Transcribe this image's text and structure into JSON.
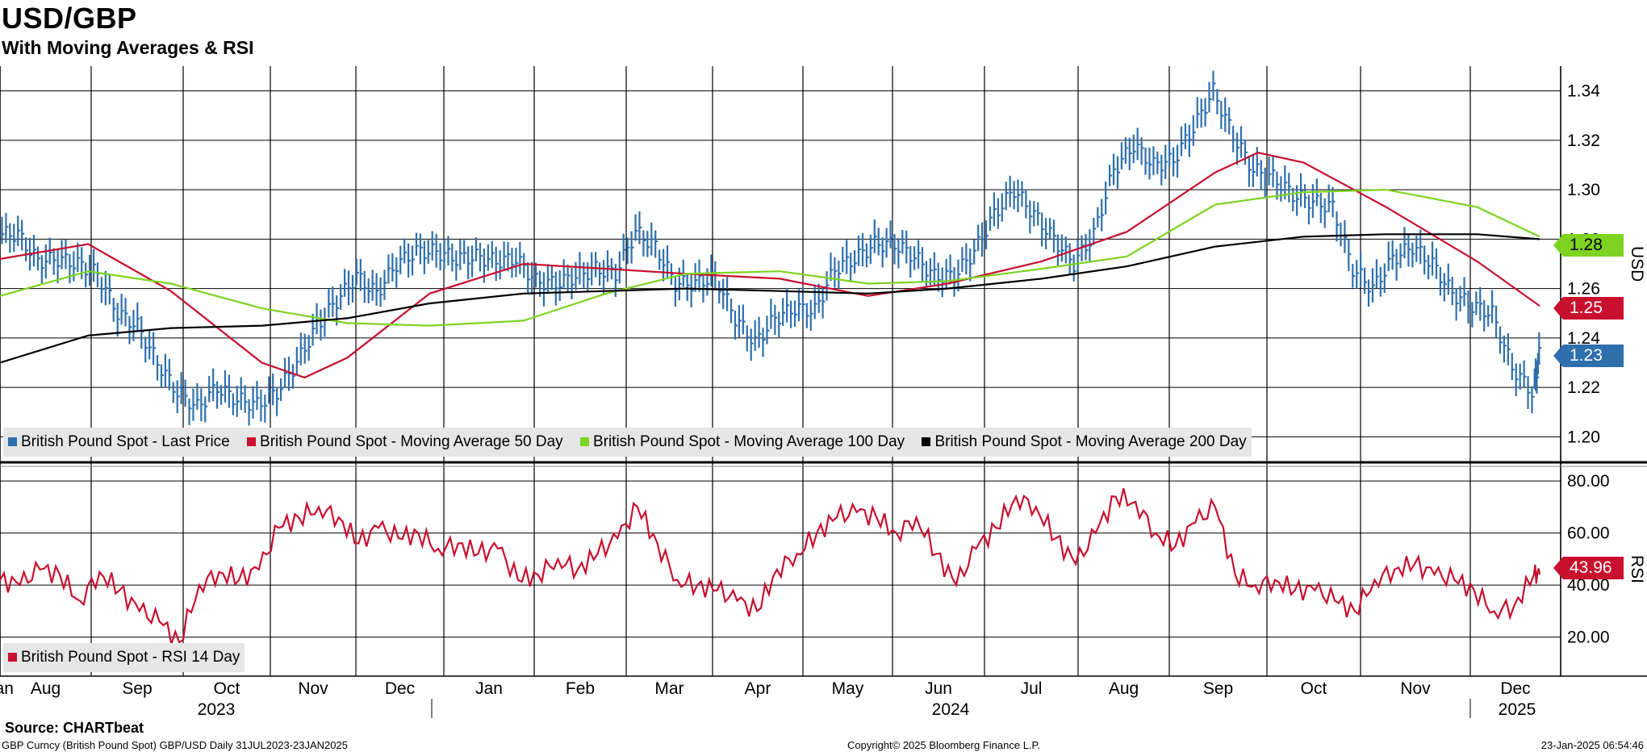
{
  "title": "USD/GBP",
  "subtitle": "With Moving Averages & RSI",
  "source": "Source: CHARTbeat",
  "footer": {
    "left": "GBP Curncy (British Pound Spot) GBP/USD  Daily 31JUL2023-23JAN2025",
    "center": "Copyright© 2025 Bloomberg Finance L.P.",
    "right": "23-Jan-2025 06:54:46"
  },
  "colors": {
    "last_price": "#2e6fad",
    "ma50": "#c8102e",
    "ma100": "#7ed321",
    "ma200": "#000000",
    "rsi": "#c8102e",
    "grid": "#000000",
    "legend_bg": "#e6e6e6"
  },
  "legend_main": [
    {
      "label": "British Pound Spot - Last Price",
      "color": "#2e6fad"
    },
    {
      "label": "British Pound Spot - Moving Average 50 Day",
      "color": "#c8102e"
    },
    {
      "label": "British Pound Spot - Moving Average 100 Day",
      "color": "#7ed321"
    },
    {
      "label": "British Pound Spot - Moving Average 200 Day",
      "color": "#000000"
    }
  ],
  "legend_rsi": [
    {
      "label": "British Pound Spot - RSI 14 Day",
      "color": "#c8102e"
    }
  ],
  "value_tags": {
    "ma100": "1.28",
    "ma50": "1.25",
    "last": "1.23",
    "rsi": "43.96"
  },
  "axis_titles": {
    "price": "USD",
    "rsi": "RSI"
  },
  "chart_data": [
    {
      "type": "line",
      "panel": "price",
      "ylim": [
        1.19,
        1.35
      ],
      "yticks": [
        "1.20",
        "1.22",
        "1.24",
        "1.26",
        "1.28",
        "1.30",
        "1.32",
        "1.34"
      ],
      "ytick_values": [
        1.2,
        1.22,
        1.24,
        1.26,
        1.28,
        1.3,
        1.32,
        1.34
      ],
      "x_months": [
        "Aug",
        "Sep",
        "Oct",
        "Nov",
        "Dec",
        "Jan",
        "Feb",
        "Mar",
        "Apr",
        "May",
        "Jun",
        "Jul",
        "Aug",
        "Sep",
        "Oct",
        "Nov",
        "Dec",
        "Jan"
      ],
      "x_years": [
        "2023",
        "2024",
        "2025"
      ],
      "grid": true,
      "series": [
        {
          "name": "British Pound Spot - Last Price",
          "style": "bars",
          "x": [
            "2023-07-31",
            "2023-08-07",
            "2023-08-14",
            "2023-08-21",
            "2023-08-28",
            "2023-09-04",
            "2023-09-11",
            "2023-09-18",
            "2023-09-25",
            "2023-10-02",
            "2023-10-09",
            "2023-10-16",
            "2023-10-23",
            "2023-10-30",
            "2023-11-06",
            "2023-11-13",
            "2023-11-20",
            "2023-11-27",
            "2023-12-04",
            "2023-12-11",
            "2023-12-18",
            "2023-12-25",
            "2024-01-01",
            "2024-01-08",
            "2024-01-15",
            "2024-01-22",
            "2024-01-29",
            "2024-02-05",
            "2024-02-12",
            "2024-02-19",
            "2024-02-26",
            "2024-03-04",
            "2024-03-11",
            "2024-03-18",
            "2024-03-25",
            "2024-04-01",
            "2024-04-08",
            "2024-04-15",
            "2024-04-22",
            "2024-04-29",
            "2024-05-06",
            "2024-05-13",
            "2024-05-20",
            "2024-05-27",
            "2024-06-03",
            "2024-06-10",
            "2024-06-17",
            "2024-06-24",
            "2024-07-01",
            "2024-07-08",
            "2024-07-15",
            "2024-07-22",
            "2024-07-29",
            "2024-08-05",
            "2024-08-12",
            "2024-08-19",
            "2024-08-26",
            "2024-09-02",
            "2024-09-09",
            "2024-09-16",
            "2024-09-23",
            "2024-09-30",
            "2024-10-07",
            "2024-10-14",
            "2024-10-21",
            "2024-10-28",
            "2024-11-04",
            "2024-11-11",
            "2024-11-18",
            "2024-11-25",
            "2024-12-02",
            "2024-12-09",
            "2024-12-16",
            "2024-12-23",
            "2024-12-30",
            "2025-01-06",
            "2025-01-13",
            "2025-01-20"
          ],
          "values": [
            1.282,
            1.271,
            1.272,
            1.27,
            1.266,
            1.25,
            1.245,
            1.23,
            1.218,
            1.212,
            1.22,
            1.215,
            1.213,
            1.218,
            1.23,
            1.245,
            1.255,
            1.265,
            1.258,
            1.27,
            1.275,
            1.275,
            1.272,
            1.273,
            1.271,
            1.272,
            1.263,
            1.262,
            1.265,
            1.268,
            1.266,
            1.283,
            1.277,
            1.262,
            1.262,
            1.265,
            1.248,
            1.238,
            1.248,
            1.252,
            1.251,
            1.268,
            1.272,
            1.278,
            1.278,
            1.273,
            1.265,
            1.265,
            1.275,
            1.29,
            1.3,
            1.29,
            1.28,
            1.27,
            1.282,
            1.308,
            1.318,
            1.31,
            1.312,
            1.325,
            1.34,
            1.322,
            1.308,
            1.305,
            1.298,
            1.295,
            1.293,
            1.268,
            1.26,
            1.272,
            1.277,
            1.27,
            1.258,
            1.253,
            1.25,
            1.228,
            1.218,
            1.233
          ]
        },
        {
          "name": "British Pound Spot - Moving Average 50 Day",
          "x": [
            "2023-07-31",
            "2023-08-31",
            "2023-09-29",
            "2023-10-31",
            "2023-11-15",
            "2023-11-30",
            "2023-12-29",
            "2024-01-31",
            "2024-02-29",
            "2024-03-28",
            "2024-04-30",
            "2024-05-31",
            "2024-06-28",
            "2024-07-31",
            "2024-08-30",
            "2024-09-30",
            "2024-10-15",
            "2024-10-31",
            "2024-11-29",
            "2024-12-31",
            "2025-01-22"
          ],
          "values": [
            1.272,
            1.278,
            1.259,
            1.23,
            1.224,
            1.232,
            1.258,
            1.27,
            1.268,
            1.266,
            1.264,
            1.257,
            1.262,
            1.271,
            1.283,
            1.307,
            1.315,
            1.311,
            1.293,
            1.271,
            1.253
          ]
        },
        {
          "name": "British Pound Spot - Moving Average 100 Day",
          "x": [
            "2023-07-31",
            "2023-08-31",
            "2023-09-29",
            "2023-10-31",
            "2023-11-30",
            "2023-12-29",
            "2024-01-31",
            "2024-02-29",
            "2024-03-28",
            "2024-04-30",
            "2024-05-31",
            "2024-06-28",
            "2024-07-31",
            "2024-08-30",
            "2024-09-30",
            "2024-10-31",
            "2024-11-29",
            "2024-12-31",
            "2025-01-22"
          ],
          "values": [
            1.257,
            1.267,
            1.262,
            1.252,
            1.246,
            1.245,
            1.247,
            1.258,
            1.266,
            1.267,
            1.262,
            1.263,
            1.268,
            1.273,
            1.294,
            1.299,
            1.3,
            1.293,
            1.281
          ]
        },
        {
          "name": "British Pound Spot - Moving Average 200 Day",
          "x": [
            "2023-07-31",
            "2023-08-31",
            "2023-09-29",
            "2023-10-31",
            "2023-11-30",
            "2023-12-29",
            "2024-01-31",
            "2024-02-29",
            "2024-03-28",
            "2024-04-30",
            "2024-05-31",
            "2024-06-28",
            "2024-07-31",
            "2024-08-30",
            "2024-09-30",
            "2024-10-31",
            "2024-11-29",
            "2024-12-31",
            "2025-01-22"
          ],
          "values": [
            1.23,
            1.241,
            1.244,
            1.245,
            1.248,
            1.254,
            1.258,
            1.259,
            1.26,
            1.259,
            1.258,
            1.26,
            1.264,
            1.269,
            1.277,
            1.281,
            1.282,
            1.282,
            1.28
          ]
        }
      ]
    },
    {
      "type": "line",
      "panel": "rsi",
      "ylim": [
        5,
        85
      ],
      "yticks": [
        "20.00",
        "40.00",
        "60.00",
        "80.00"
      ],
      "ytick_values": [
        20,
        40,
        60,
        80
      ],
      "grid": true,
      "series": [
        {
          "name": "British Pound Spot - RSI 14 Day",
          "x": [
            "2023-07-31",
            "2023-08-07",
            "2023-08-14",
            "2023-08-21",
            "2023-08-28",
            "2023-09-04",
            "2023-09-11",
            "2023-09-18",
            "2023-09-25",
            "2023-10-02",
            "2023-10-09",
            "2023-10-16",
            "2023-10-23",
            "2023-10-30",
            "2023-11-06",
            "2023-11-13",
            "2023-11-20",
            "2023-11-27",
            "2023-12-04",
            "2023-12-11",
            "2023-12-18",
            "2023-12-25",
            "2024-01-01",
            "2024-01-08",
            "2024-01-15",
            "2024-01-22",
            "2024-01-29",
            "2024-02-05",
            "2024-02-12",
            "2024-02-19",
            "2024-02-26",
            "2024-03-04",
            "2024-03-11",
            "2024-03-18",
            "2024-03-25",
            "2024-04-01",
            "2024-04-08",
            "2024-04-15",
            "2024-04-22",
            "2024-04-29",
            "2024-05-06",
            "2024-05-13",
            "2024-05-20",
            "2024-05-27",
            "2024-06-03",
            "2024-06-10",
            "2024-06-17",
            "2024-06-24",
            "2024-07-01",
            "2024-07-08",
            "2024-07-15",
            "2024-07-22",
            "2024-07-29",
            "2024-08-05",
            "2024-08-12",
            "2024-08-19",
            "2024-08-26",
            "2024-09-02",
            "2024-09-09",
            "2024-09-16",
            "2024-09-23",
            "2024-09-30",
            "2024-10-07",
            "2024-10-14",
            "2024-10-21",
            "2024-10-28",
            "2024-11-04",
            "2024-11-11",
            "2024-11-18",
            "2024-11-25",
            "2024-12-02",
            "2024-12-09",
            "2024-12-16",
            "2024-12-23",
            "2024-12-30",
            "2025-01-06",
            "2025-01-13",
            "2025-01-20",
            "2025-01-22"
          ],
          "values": [
            42,
            40,
            46,
            44,
            34,
            45,
            38,
            30,
            26,
            18,
            40,
            45,
            42,
            46,
            62,
            66,
            70,
            66,
            56,
            62,
            58,
            60,
            54,
            56,
            52,
            54,
            42,
            44,
            50,
            46,
            52,
            58,
            70,
            56,
            42,
            40,
            38,
            34,
            30,
            46,
            52,
            60,
            66,
            68,
            66,
            60,
            66,
            52,
            40,
            54,
            62,
            74,
            70,
            58,
            48,
            60,
            74,
            72,
            60,
            55,
            64,
            70,
            44,
            40,
            42,
            38,
            38,
            34,
            30,
            42,
            46,
            48,
            44,
            42,
            38,
            30,
            32,
            44,
            44
          ]
        }
      ]
    }
  ]
}
